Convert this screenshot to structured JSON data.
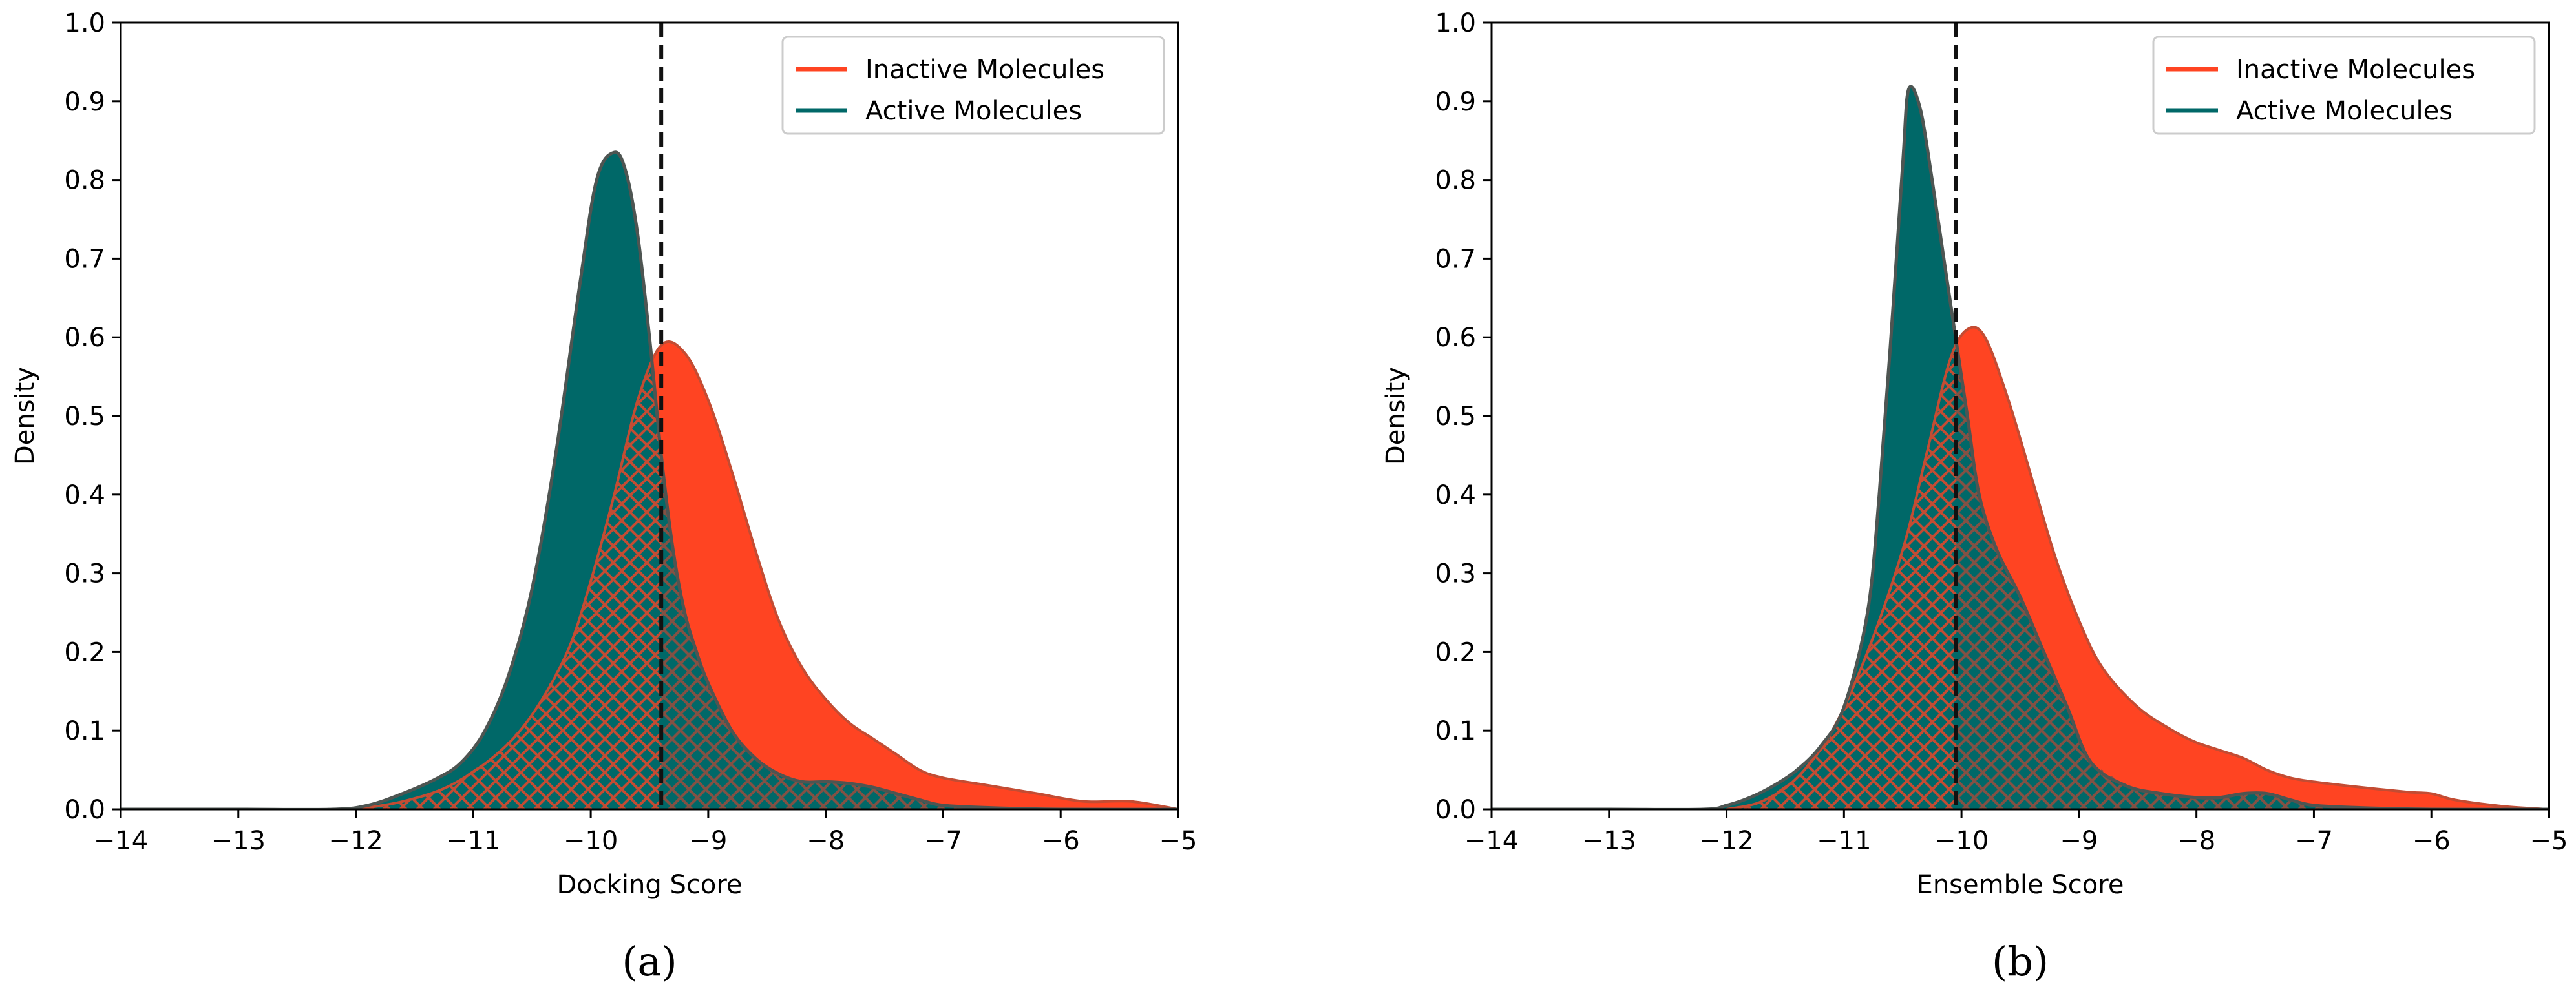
{
  "colors": {
    "inactive": "#FF4422",
    "active": "#006868",
    "hatch_inactive": "#C34C33",
    "hatch_active": "#4E5552",
    "axis": "#000000",
    "cutoff": "#111111"
  },
  "chart_data": [
    {
      "type": "area",
      "caption": "(a)",
      "xlabel": "Docking Score",
      "ylabel": "Density",
      "xlim": [
        -14,
        -5
      ],
      "ylim": [
        0,
        1.0
      ],
      "xticks": [
        -14,
        -13,
        -12,
        -11,
        -10,
        -9,
        -8,
        -7,
        -6,
        -5
      ],
      "xtick_labels": [
        "−14",
        "−13",
        "−12",
        "−11",
        "−10",
        "−9",
        "−8",
        "−7",
        "−6",
        "−5"
      ],
      "yticks": [
        0,
        0.1,
        0.2,
        0.3,
        0.4,
        0.5,
        0.6,
        0.7,
        0.8,
        0.9,
        1.0
      ],
      "ytick_labels": [
        "0.0",
        "0.1",
        "0.2",
        "0.3",
        "0.4",
        "0.5",
        "0.6",
        "0.7",
        "0.8",
        "0.9",
        "1.0"
      ],
      "cutoff_x": -9.4,
      "legend_position": "top-right",
      "series": [
        {
          "name": "Inactive Molecules",
          "x": [
            -12.0,
            -11.6,
            -11.2,
            -10.8,
            -10.5,
            -10.2,
            -10.0,
            -9.8,
            -9.6,
            -9.4,
            -9.2,
            -9.0,
            -8.8,
            -8.6,
            -8.4,
            -8.2,
            -8.0,
            -7.8,
            -7.6,
            -7.4,
            -7.2,
            -7.0,
            -6.6,
            -6.2,
            -5.8,
            -5.4,
            -5.0
          ],
          "values": [
            0.0,
            0.01,
            0.03,
            0.07,
            0.12,
            0.2,
            0.29,
            0.4,
            0.52,
            0.59,
            0.58,
            0.52,
            0.43,
            0.33,
            0.24,
            0.18,
            0.14,
            0.11,
            0.09,
            0.07,
            0.05,
            0.04,
            0.03,
            0.02,
            0.01,
            0.01,
            0.0
          ]
        },
        {
          "name": "Active Molecules",
          "x": [
            -14.0,
            -13.0,
            -12.2,
            -11.9,
            -11.6,
            -11.3,
            -11.1,
            -10.9,
            -10.7,
            -10.5,
            -10.3,
            -10.1,
            -9.95,
            -9.8,
            -9.7,
            -9.6,
            -9.5,
            -9.4,
            -9.3,
            -9.2,
            -9.1,
            -9.0,
            -8.8,
            -8.6,
            -8.4,
            -8.2,
            -8.0,
            -7.8,
            -7.6,
            -7.4,
            -7.2,
            -7.0,
            -6.6,
            -6.0,
            -5.0
          ],
          "values": [
            0.0,
            0.0,
            0.0,
            0.005,
            0.02,
            0.04,
            0.06,
            0.1,
            0.17,
            0.28,
            0.45,
            0.66,
            0.8,
            0.835,
            0.81,
            0.73,
            0.6,
            0.45,
            0.33,
            0.25,
            0.2,
            0.16,
            0.1,
            0.065,
            0.045,
            0.035,
            0.035,
            0.033,
            0.028,
            0.02,
            0.012,
            0.005,
            0.002,
            0.0,
            0.0
          ]
        }
      ]
    },
    {
      "type": "area",
      "caption": "(b)",
      "xlabel": "Ensemble Score",
      "ylabel": "Density",
      "xlim": [
        -14,
        -5
      ],
      "ylim": [
        0,
        1.0
      ],
      "xticks": [
        -14,
        -13,
        -12,
        -11,
        -10,
        -9,
        -8,
        -7,
        -6,
        -5
      ],
      "xtick_labels": [
        "−14",
        "−13",
        "−12",
        "−11",
        "−10",
        "−9",
        "−8",
        "−7",
        "−6",
        "−5"
      ],
      "yticks": [
        0,
        0.1,
        0.2,
        0.3,
        0.4,
        0.5,
        0.6,
        0.7,
        0.8,
        0.9,
        1.0
      ],
      "ytick_labels": [
        "0.0",
        "0.1",
        "0.2",
        "0.3",
        "0.4",
        "0.5",
        "0.6",
        "0.7",
        "0.8",
        "0.9",
        "1.0"
      ],
      "cutoff_x": -10.05,
      "legend_position": "top-right",
      "series": [
        {
          "name": "Inactive Molecules",
          "x": [
            -12.0,
            -11.7,
            -11.4,
            -11.1,
            -10.8,
            -10.5,
            -10.3,
            -10.1,
            -9.95,
            -9.8,
            -9.6,
            -9.4,
            -9.2,
            -9.0,
            -8.8,
            -8.5,
            -8.2,
            -8.0,
            -7.8,
            -7.6,
            -7.4,
            -7.2,
            -7.0,
            -6.6,
            -6.2,
            -6.0,
            -5.8,
            -5.4,
            -5.0
          ],
          "values": [
            0.0,
            0.01,
            0.04,
            0.1,
            0.2,
            0.33,
            0.45,
            0.57,
            0.61,
            0.6,
            0.52,
            0.42,
            0.32,
            0.24,
            0.18,
            0.13,
            0.1,
            0.085,
            0.075,
            0.065,
            0.05,
            0.04,
            0.035,
            0.028,
            0.022,
            0.02,
            0.012,
            0.004,
            0.0
          ]
        },
        {
          "name": "Active Molecules",
          "x": [
            -14.0,
            -13.0,
            -12.2,
            -12.0,
            -11.8,
            -11.6,
            -11.4,
            -11.2,
            -11.0,
            -10.8,
            -10.7,
            -10.6,
            -10.5,
            -10.45,
            -10.35,
            -10.25,
            -10.15,
            -10.05,
            -9.95,
            -9.85,
            -9.7,
            -9.5,
            -9.3,
            -9.1,
            -8.9,
            -8.6,
            -8.3,
            -8.0,
            -7.8,
            -7.6,
            -7.4,
            -7.2,
            -7.0,
            -6.6,
            -6.0,
            -5.0
          ],
          "values": [
            0.0,
            0.0,
            0.0,
            0.005,
            0.015,
            0.03,
            0.05,
            0.08,
            0.13,
            0.25,
            0.4,
            0.6,
            0.82,
            0.915,
            0.89,
            0.8,
            0.7,
            0.6,
            0.5,
            0.4,
            0.33,
            0.27,
            0.2,
            0.13,
            0.06,
            0.03,
            0.02,
            0.015,
            0.015,
            0.02,
            0.02,
            0.012,
            0.005,
            0.002,
            0.0,
            0.0
          ]
        }
      ]
    }
  ]
}
